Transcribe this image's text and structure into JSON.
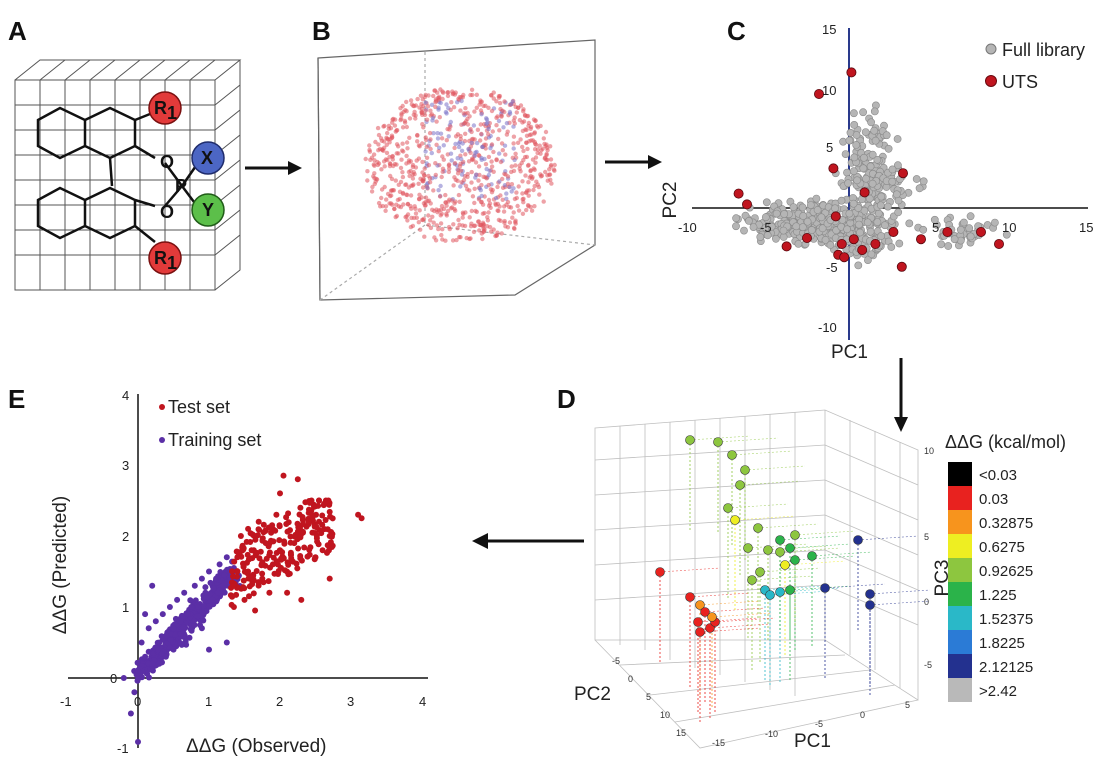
{
  "panels": {
    "a": {
      "label": "A",
      "atoms": {
        "o1": "O",
        "o2": "O",
        "p": "P",
        "x": "X",
        "y": "Y",
        "r": "R",
        "r_sub": "1"
      }
    },
    "b": {
      "label": "B"
    },
    "c": {
      "label": "C"
    },
    "d": {
      "label": "D"
    },
    "e": {
      "label": "E"
    }
  },
  "colors": {
    "library": "#b5b5b5",
    "uts": "#c0151f",
    "test": "#c0151f",
    "training": "#5b2fa6",
    "axis": "#2a3a8c"
  },
  "chart_data": [
    {
      "type": "scatter",
      "panel": "C",
      "xlabel": "PC1",
      "ylabel": "PC2",
      "xlim": [
        -10,
        15
      ],
      "ylim": [
        -10,
        15
      ],
      "x_ticks": [
        "-10",
        "-5",
        "5",
        "10",
        "15"
      ],
      "y_ticks": [
        "15",
        "10",
        "5",
        "-5",
        "-10"
      ],
      "legend": [
        "Full library",
        "UTS"
      ],
      "legend_position": "top-right",
      "series": [
        {
          "name": "UTS",
          "points": [
            [
              0.2,
              11.3
            ],
            [
              -2.5,
              9.5
            ],
            [
              -9.2,
              1.2
            ],
            [
              -8.5,
              0.3
            ],
            [
              -5.2,
              -3.2
            ],
            [
              -3.5,
              -2.5
            ],
            [
              -0.9,
              -3.9
            ],
            [
              -0.6,
              -3.0
            ],
            [
              0.4,
              -2.6
            ],
            [
              1.1,
              -3.5
            ],
            [
              2.2,
              -3.0
            ],
            [
              3.7,
              -2.0
            ],
            [
              -1.1,
              -0.7
            ],
            [
              1.3,
              1.3
            ],
            [
              4.5,
              2.9
            ],
            [
              -1.3,
              3.3
            ],
            [
              6.0,
              -2.6
            ],
            [
              8.2,
              -2.0
            ],
            [
              11.0,
              -2.0
            ],
            [
              12.5,
              -3.0
            ],
            [
              4.4,
              -4.9
            ],
            [
              -0.4,
              -4.1
            ]
          ]
        }
      ]
    },
    {
      "type": "scatter",
      "panel": "D",
      "xlabel": "PC1",
      "ylabel": "PC2",
      "zlabel": "PC3",
      "z_ticks": [
        "10",
        "5",
        "0",
        "-5"
      ],
      "x_ticks": [
        "5",
        "0",
        "-5",
        "-10",
        "-15"
      ],
      "y_ticks": [
        "-5",
        "0",
        "5",
        "10",
        "15"
      ],
      "legend_title": "ΔΔG (kcal/mol)",
      "legend": [
        {
          "label": "<0.03",
          "color": "#000000"
        },
        {
          "label": "0.03",
          "color": "#e8221f"
        },
        {
          "label": "0.32875",
          "color": "#f7941d"
        },
        {
          "label": "0.6275",
          "color": "#eeee22"
        },
        {
          "label": "0.92625",
          "color": "#8dc63f"
        },
        {
          "label": "1.225",
          "color": "#2bb34a"
        },
        {
          "label": "1.52375",
          "color": "#2ab8c8"
        },
        {
          "label": "1.8225",
          "color": "#2b7bd6"
        },
        {
          "label": "2.12125",
          "color": "#23318f"
        },
        {
          "label": ">2.42",
          "color": "#b9b9b9"
        }
      ]
    },
    {
      "type": "scatter",
      "panel": "E",
      "xlabel": "ΔΔG (Observed)",
      "ylabel": "ΔΔG (Predicted)",
      "xlim": [
        -1,
        4
      ],
      "ylim": [
        -1,
        4
      ],
      "x_ticks": [
        "-1",
        "0",
        "1",
        "2",
        "3",
        "4"
      ],
      "y_ticks": [
        "4",
        "3",
        "2",
        "1",
        "0",
        "-1"
      ],
      "legend": [
        "Test set",
        "Training set"
      ],
      "legend_position": "top-left",
      "series": [
        {
          "name": "Test set",
          "points": [
            [
              1.35,
              1.3
            ],
            [
              1.4,
              1.7
            ],
            [
              1.45,
              2.0
            ],
            [
              1.5,
              1.1
            ],
            [
              1.55,
              1.5
            ],
            [
              1.6,
              1.8
            ],
            [
              1.7,
              2.2
            ],
            [
              1.75,
              1.4
            ],
            [
              1.8,
              1.9
            ],
            [
              1.9,
              1.6
            ],
            [
              1.95,
              2.3
            ],
            [
              2.0,
              1.8
            ],
            [
              2.1,
              1.2
            ],
            [
              2.2,
              1.9
            ],
            [
              2.3,
              1.1
            ],
            [
              2.4,
              2.2
            ],
            [
              2.5,
              1.7
            ],
            [
              2.6,
              1.8
            ],
            [
              2.7,
              1.4
            ],
            [
              2.7,
              2.0
            ],
            [
              3.1,
              2.3
            ],
            [
              3.15,
              2.25
            ],
            [
              1.55,
              2.1
            ],
            [
              1.85,
              1.2
            ],
            [
              2.0,
              2.6
            ],
            [
              2.05,
              2.85
            ],
            [
              1.35,
              1.0
            ],
            [
              2.55,
              2.2
            ],
            [
              1.65,
              0.95
            ],
            [
              2.25,
              2.8
            ]
          ]
        },
        {
          "name": "Training set",
          "points": [
            [
              -0.2,
              0.0
            ],
            [
              -0.1,
              -0.5
            ],
            [
              0.0,
              0.1
            ],
            [
              0.0,
              -0.9
            ],
            [
              0.05,
              0.5
            ],
            [
              0.1,
              0.3
            ],
            [
              0.15,
              0.7
            ],
            [
              0.2,
              0.2
            ],
            [
              0.25,
              0.8
            ],
            [
              0.3,
              0.5
            ],
            [
              0.35,
              0.9
            ],
            [
              0.4,
              0.6
            ],
            [
              0.45,
              1.0
            ],
            [
              0.5,
              0.7
            ],
            [
              0.55,
              1.1
            ],
            [
              0.6,
              0.8
            ],
            [
              0.65,
              1.2
            ],
            [
              0.7,
              0.9
            ],
            [
              0.75,
              1.0
            ],
            [
              0.8,
              1.3
            ],
            [
              0.85,
              1.0
            ],
            [
              0.9,
              1.4
            ],
            [
              0.95,
              1.2
            ],
            [
              1.0,
              1.5
            ],
            [
              1.05,
              1.1
            ],
            [
              1.1,
              1.4
            ],
            [
              1.15,
              1.6
            ],
            [
              1.2,
              1.3
            ],
            [
              1.25,
              1.7
            ],
            [
              1.3,
              1.5
            ],
            [
              0.1,
              0.9
            ],
            [
              0.2,
              1.3
            ],
            [
              0.9,
              0.7
            ],
            [
              1.0,
              0.4
            ],
            [
              1.25,
              0.5
            ],
            [
              -0.05,
              -0.2
            ],
            [
              0.3,
              0.2
            ],
            [
              0.5,
              0.4
            ]
          ]
        }
      ]
    }
  ]
}
